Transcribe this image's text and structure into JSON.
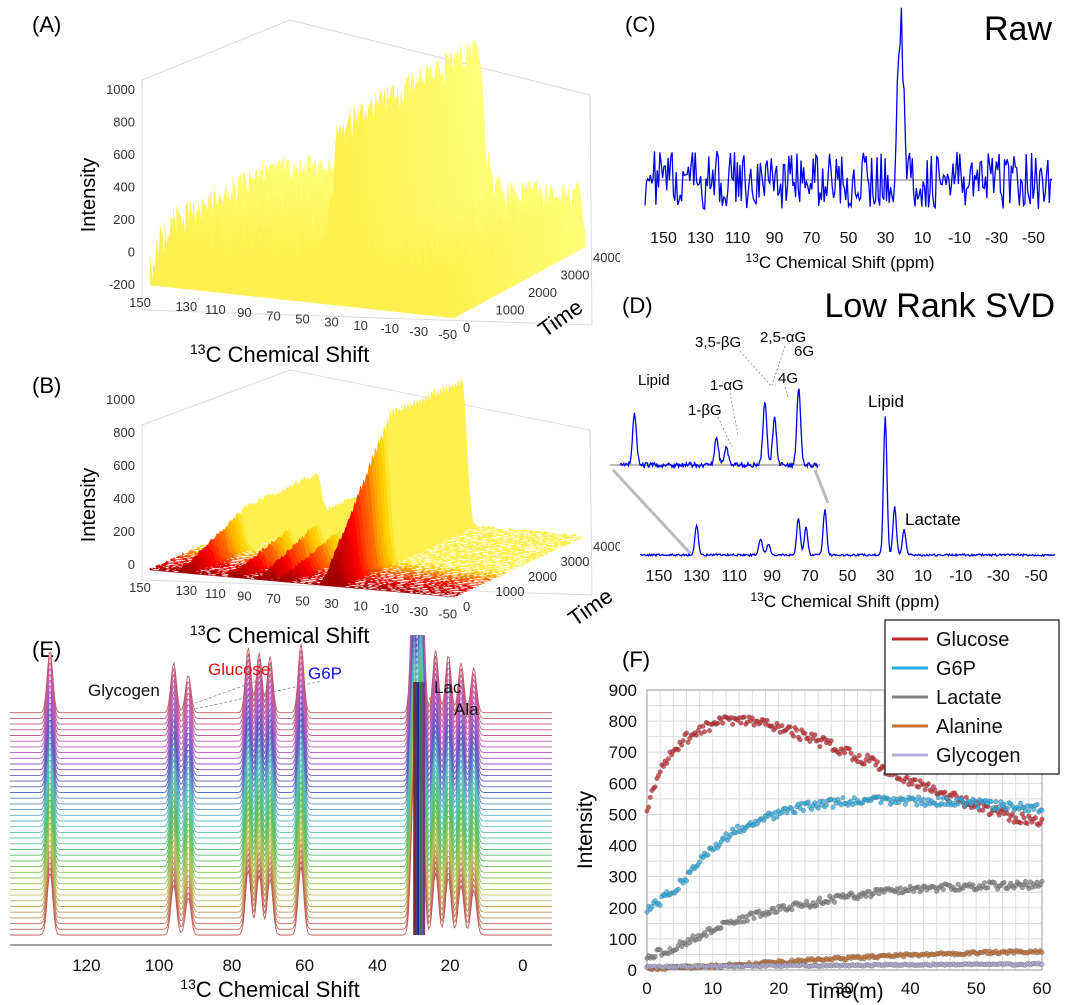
{
  "chart_data": [
    {
      "panel": "(A)",
      "type": "area",
      "kind": "3d-waterfall",
      "xlabel": "13C Chemical Shift",
      "ylabel": "Time",
      "zlabel": "Intensity",
      "x_ticks": [
        "130",
        "110",
        "90",
        "70",
        "50",
        "30",
        "10",
        "-10",
        "-30",
        "-50"
      ],
      "x_edge_label": "150",
      "y_ticks": [
        "0",
        "1000",
        "2000",
        "3000",
        "4000"
      ],
      "z_ticks": [
        "-200",
        "0",
        "200",
        "400",
        "600",
        "800",
        "1000"
      ],
      "zlim": [
        -200,
        1000
      ],
      "colormap": "hot",
      "baseline_noise": 200,
      "peaks": [
        {
          "ppm": 22,
          "height": 880,
          "width": 7
        }
      ]
    },
    {
      "panel": "(B)",
      "type": "area",
      "kind": "3d-waterfall",
      "xlabel": "13C Chemical Shift",
      "ylabel": "Time",
      "zlabel": "Intensity",
      "x_ticks": [
        "130",
        "110",
        "90",
        "70",
        "50",
        "30",
        "10",
        "-10",
        "-30",
        "-50"
      ],
      "x_edge_label": "150",
      "y_ticks": [
        "0",
        "1000",
        "2000",
        "3000",
        "4000"
      ],
      "z_ticks": [
        "0",
        "200",
        "400",
        "600",
        "800",
        "1000"
      ],
      "zlim": [
        0,
        1000
      ],
      "colormap": "hot",
      "peaks": [
        {
          "ppm": 130,
          "height": 240
        },
        {
          "ppm": 96,
          "height": 160
        },
        {
          "ppm": 76,
          "height": 220
        },
        {
          "ppm": 62,
          "height": 180
        },
        {
          "ppm": 30,
          "height": 900
        }
      ]
    },
    {
      "panel": "(C)",
      "type": "line",
      "title": "Raw",
      "xlabel": "13C Chemical Shift (ppm)",
      "x_ticks": [
        "150",
        "130",
        "110",
        "90",
        "70",
        "50",
        "30",
        "10",
        "-10",
        "-30",
        "-50"
      ],
      "xlim": [
        160,
        -60
      ],
      "peaks": [
        {
          "ppm": 22,
          "height": 1.0
        }
      ],
      "color": "#0000ee"
    },
    {
      "panel": "(D)",
      "type": "line",
      "title": "Low Rank SVD",
      "xlabel": "13C Chemical Shift (ppm)",
      "x_ticks": [
        "150",
        "130",
        "110",
        "90",
        "70",
        "50",
        "30",
        "10",
        "-10",
        "-30",
        "-50"
      ],
      "xlim": [
        160,
        -60
      ],
      "color": "#0000ee",
      "peaks": [
        {
          "ppm": 130,
          "height": 0.22
        },
        {
          "ppm": 96,
          "height": 0.12
        },
        {
          "ppm": 92,
          "height": 0.08
        },
        {
          "ppm": 76,
          "height": 0.27
        },
        {
          "ppm": 72,
          "height": 0.2
        },
        {
          "ppm": 62,
          "height": 0.33
        },
        {
          "ppm": 30,
          "height": 1.0
        },
        {
          "ppm": 25,
          "height": 0.35
        },
        {
          "ppm": 20,
          "height": 0.18
        }
      ],
      "annotations": [
        "Lipid",
        "Lactate"
      ],
      "inset_labels": [
        "Lipid",
        "1-βG",
        "1-αG",
        "3,5-βG",
        "4G",
        "2,5-αG",
        "6G"
      ]
    },
    {
      "panel": "(E)",
      "type": "line",
      "kind": "stacked-spectra",
      "xlabel": "13C Chemical Shift",
      "x_ticks": [
        "120",
        "100",
        "80",
        "60",
        "40",
        "20",
        "0"
      ],
      "xlim": [
        141,
        -8
      ],
      "n_traces": 40,
      "peaks": [
        {
          "ppm": 130,
          "height": 0.5
        },
        {
          "ppm": 96,
          "height": 0.4
        },
        {
          "ppm": 92,
          "height": 0.3
        },
        {
          "ppm": 75.5,
          "height": 0.52
        },
        {
          "ppm": 72.5,
          "height": 0.48
        },
        {
          "ppm": 69.5,
          "height": 0.45
        },
        {
          "ppm": 61,
          "height": 0.55
        },
        {
          "ppm": 30,
          "height": 1.2
        },
        {
          "ppm": 28,
          "height": 1.4
        },
        {
          "ppm": 24,
          "height": 0.5
        },
        {
          "ppm": 20.5,
          "height": 0.46
        },
        {
          "ppm": 17,
          "height": 0.4
        },
        {
          "ppm": 13.5,
          "height": 0.36
        }
      ],
      "annotations": [
        {
          "text": "Glycogen",
          "color": "#111111"
        },
        {
          "text": "Glucose",
          "color": "#dd1111"
        },
        {
          "text": "G6P",
          "color": "#1111dd"
        },
        {
          "text": "Lac",
          "color": "#111111"
        },
        {
          "text": "Ala",
          "color": "#111111"
        }
      ]
    },
    {
      "panel": "(F)",
      "type": "scatter",
      "xlabel": "Time(m)",
      "ylabel": "Intensity",
      "xlim": [
        0,
        60
      ],
      "ylim": [
        0,
        900
      ],
      "x_ticks": [
        "0",
        "10",
        "20",
        "30",
        "40",
        "50",
        "60"
      ],
      "y_ticks": [
        "0",
        "100",
        "200",
        "300",
        "400",
        "500",
        "600",
        "700",
        "800",
        "900"
      ],
      "grid": true,
      "legend_position": "top-right",
      "series": [
        {
          "name": "Glucose",
          "color": "#c0282d",
          "x": [
            0,
            2,
            4,
            6,
            8,
            10,
            12,
            14,
            16,
            18,
            20,
            25,
            30,
            35,
            40,
            45,
            50,
            55,
            60
          ],
          "values": [
            520,
            640,
            700,
            745,
            775,
            790,
            800,
            800,
            800,
            790,
            780,
            745,
            705,
            660,
            610,
            565,
            525,
            495,
            480
          ]
        },
        {
          "name": "G6P",
          "color": "#29abe2",
          "x": [
            0,
            2,
            4,
            6,
            8,
            10,
            12,
            14,
            16,
            18,
            20,
            25,
            30,
            35,
            40,
            45,
            50,
            55,
            60
          ],
          "values": [
            195,
            220,
            255,
            300,
            350,
            395,
            425,
            455,
            475,
            490,
            505,
            530,
            540,
            545,
            545,
            540,
            535,
            525,
            520
          ]
        },
        {
          "name": "Lactate",
          "color": "#808080",
          "x": [
            0,
            2,
            4,
            6,
            8,
            10,
            12,
            14,
            16,
            18,
            20,
            25,
            30,
            35,
            40,
            45,
            50,
            55,
            60
          ],
          "values": [
            45,
            55,
            70,
            90,
            110,
            130,
            145,
            160,
            175,
            185,
            195,
            215,
            235,
            250,
            260,
            265,
            270,
            272,
            275
          ]
        },
        {
          "name": "Alanine",
          "color": "#c47335",
          "x": [
            0,
            5,
            10,
            15,
            20,
            25,
            30,
            35,
            40,
            45,
            50,
            55,
            60
          ],
          "values": [
            5,
            8,
            12,
            18,
            25,
            32,
            38,
            43,
            48,
            52,
            55,
            57,
            58
          ]
        },
        {
          "name": "Glycogen",
          "color": "#b3aed6",
          "x": [
            0,
            10,
            20,
            30,
            40,
            50,
            60
          ],
          "values": [
            10,
            12,
            14,
            15,
            17,
            18,
            19
          ]
        }
      ]
    }
  ]
}
